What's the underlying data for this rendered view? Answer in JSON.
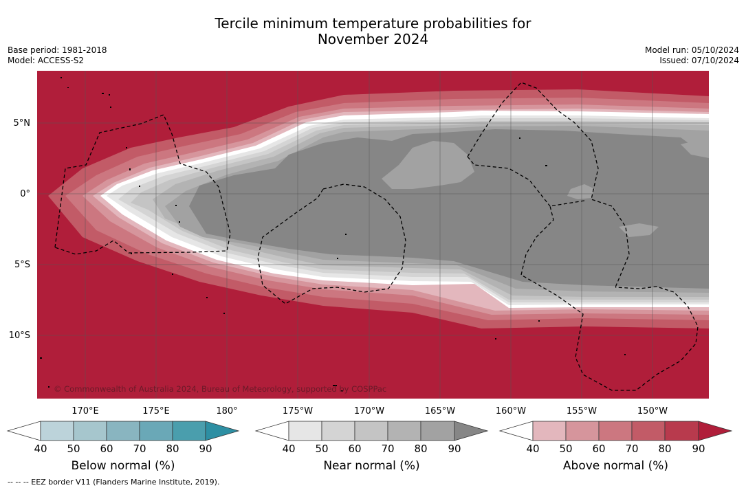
{
  "title": {
    "line1": "Tercile minimum temperature probabilities for",
    "line2": "November 2024"
  },
  "left_meta": {
    "base_period": "Base period: 1981-2018",
    "model": "Model: ACCESS-S2"
  },
  "right_meta": {
    "model_run": "Model run: 05/10/2024",
    "issued": "Issued: 07/10/2024"
  },
  "map": {
    "lat_labels": [
      "5°N",
      "0°",
      "5°S",
      "10°S"
    ],
    "lon_labels": [
      "170°E",
      "175°E",
      "180°",
      "175°W",
      "170°W",
      "165°W",
      "160°W",
      "155°W",
      "150°W"
    ],
    "copyright": "© Commonwealth of Australia 2024, Bureau of Meteorology, supported by COSPPac",
    "background_color": "#b01e3a"
  },
  "colorbars": {
    "below": {
      "label": "Below normal (%)",
      "ticks": [
        "40",
        "50",
        "60",
        "70",
        "80",
        "90"
      ],
      "colors": [
        "#bcd3da",
        "#a6c6cd",
        "#89b5c0",
        "#6aa8b7",
        "#4a9ead",
        "#2d8fa3"
      ]
    },
    "near": {
      "label": "Near normal (%)",
      "ticks": [
        "40",
        "50",
        "60",
        "70",
        "80",
        "90"
      ],
      "colors": [
        "#e6e6e6",
        "#d4d4d4",
        "#c4c4c4",
        "#b3b3b3",
        "#a2a2a2",
        "#868686"
      ]
    },
    "above": {
      "label": "Above normal (%)",
      "ticks": [
        "40",
        "50",
        "60",
        "70",
        "80",
        "90"
      ],
      "colors": [
        "#e3b7bd",
        "#d6959c",
        "#cc7780",
        "#c25b67",
        "#b83a4d",
        "#b01e3a"
      ]
    }
  },
  "footnote": "--  --  -- EEZ border V11 (Flanders Marine Institute, 2019)."
}
